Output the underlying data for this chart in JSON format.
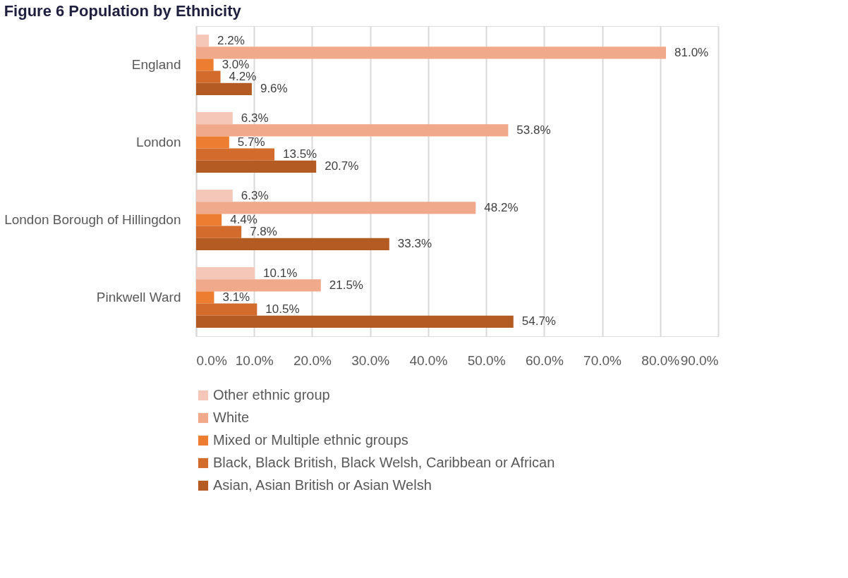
{
  "chart_data": {
    "type": "bar",
    "orientation": "horizontal",
    "title": "Figure 6 Population by Ethnicity",
    "categories": [
      "England",
      "London",
      "London Borough of Hillingdon",
      "Pinkwell Ward"
    ],
    "series": [
      {
        "name": "Other ethnic group",
        "color": "#f4c7b8",
        "values": [
          2.2,
          6.3,
          6.3,
          10.1
        ],
        "value_labels": [
          "2.2%",
          "6.3%",
          "6.3%",
          "10.1%"
        ]
      },
      {
        "name": "White",
        "color": "#f0a98b",
        "values": [
          81.0,
          53.8,
          48.2,
          21.5
        ],
        "value_labels": [
          "81.0%",
          "53.8%",
          "48.2%",
          "21.5%"
        ]
      },
      {
        "name": "Mixed or Multiple ethnic groups",
        "color": "#ed7d31",
        "values": [
          3.0,
          5.7,
          4.4,
          3.1
        ],
        "value_labels": [
          "3.0%",
          "5.7%",
          "4.4%",
          "3.1%"
        ]
      },
      {
        "name": "Black, Black British, Black Welsh, Caribbean or African",
        "color": "#d26b2c",
        "values": [
          4.2,
          13.5,
          7.8,
          10.5
        ],
        "value_labels": [
          "4.2%",
          "13.5%",
          "7.8%",
          "10.5%"
        ]
      },
      {
        "name": "Asian, Asian British or Asian Welsh",
        "color": "#b45b24",
        "values": [
          9.6,
          20.7,
          33.3,
          54.7
        ],
        "value_labels": [
          "9.6%",
          "20.7%",
          "33.3%",
          "54.7%"
        ]
      }
    ],
    "xlim": [
      0,
      90
    ],
    "xticks": [
      {
        "value": 0,
        "label": "0.0%"
      },
      {
        "value": 10,
        "label": "10.0%"
      },
      {
        "value": 20,
        "label": "20.0%"
      },
      {
        "value": 30,
        "label": "30.0%"
      },
      {
        "value": 40,
        "label": "40.0%"
      },
      {
        "value": 50,
        "label": "50.0%"
      },
      {
        "value": 60,
        "label": "60.0%"
      },
      {
        "value": 70,
        "label": "70.0%"
      },
      {
        "value": 80,
        "label": "80.0%"
      },
      {
        "value": 90,
        "label": "90.0%"
      }
    ],
    "grid": "x",
    "legend": "bottom"
  }
}
